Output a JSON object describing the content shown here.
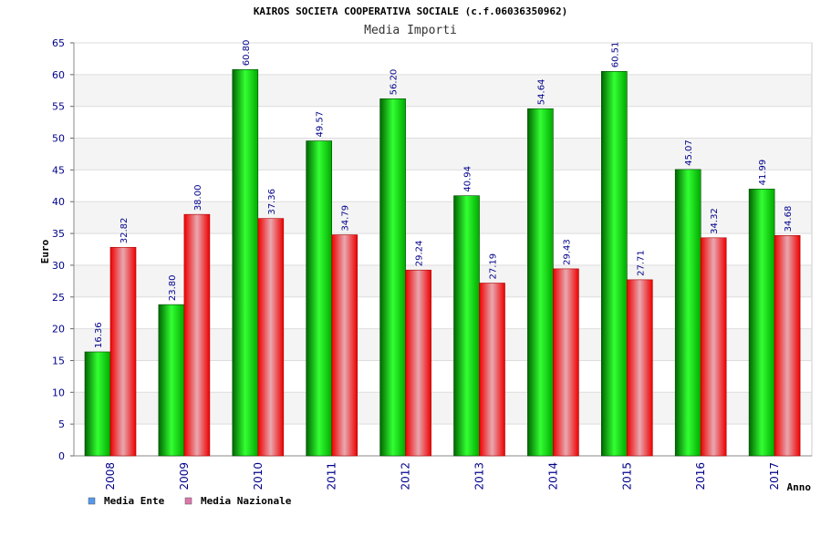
{
  "chart_data": {
    "type": "bar",
    "title": "KAIROS SOCIETA COOPERATIVA SOCIALE (c.f.06036350962)",
    "subtitle": "Media Importi",
    "xlabel": "Anno",
    "ylabel": "Euro",
    "ylim": [
      0,
      65
    ],
    "ytick_step": 5,
    "grid": true,
    "legend_position": "bottom-left",
    "categories": [
      "2008",
      "2009",
      "2010",
      "2011",
      "2012",
      "2013",
      "2014",
      "2015",
      "2016",
      "2017"
    ],
    "series": [
      {
        "name": "Media Ente",
        "legend_color": "#5599ee",
        "bar_color_dark": "#007a00",
        "bar_color_light": "#33ff33",
        "values": [
          16.36,
          23.8,
          60.8,
          49.57,
          56.2,
          40.94,
          54.64,
          60.51,
          45.07,
          41.99
        ],
        "value_labels": [
          "16.36",
          "23.80",
          "60.80",
          "49.57",
          "56.20",
          "40.94",
          "54.64",
          "60.51",
          "45.07",
          "41.99"
        ]
      },
      {
        "name": "Media Nazionale",
        "legend_color": "#dd77aa",
        "bar_color_dark": "#ee0000",
        "bar_color_light": "#e8a0a8",
        "values": [
          32.82,
          38.0,
          37.36,
          34.79,
          29.24,
          27.19,
          29.43,
          27.71,
          34.32,
          34.68
        ],
        "value_labels": [
          "32.82",
          "38.00",
          "37.36",
          "34.79",
          "29.24",
          "27.19",
          "29.43",
          "27.71",
          "34.32",
          "34.68"
        ]
      }
    ]
  }
}
